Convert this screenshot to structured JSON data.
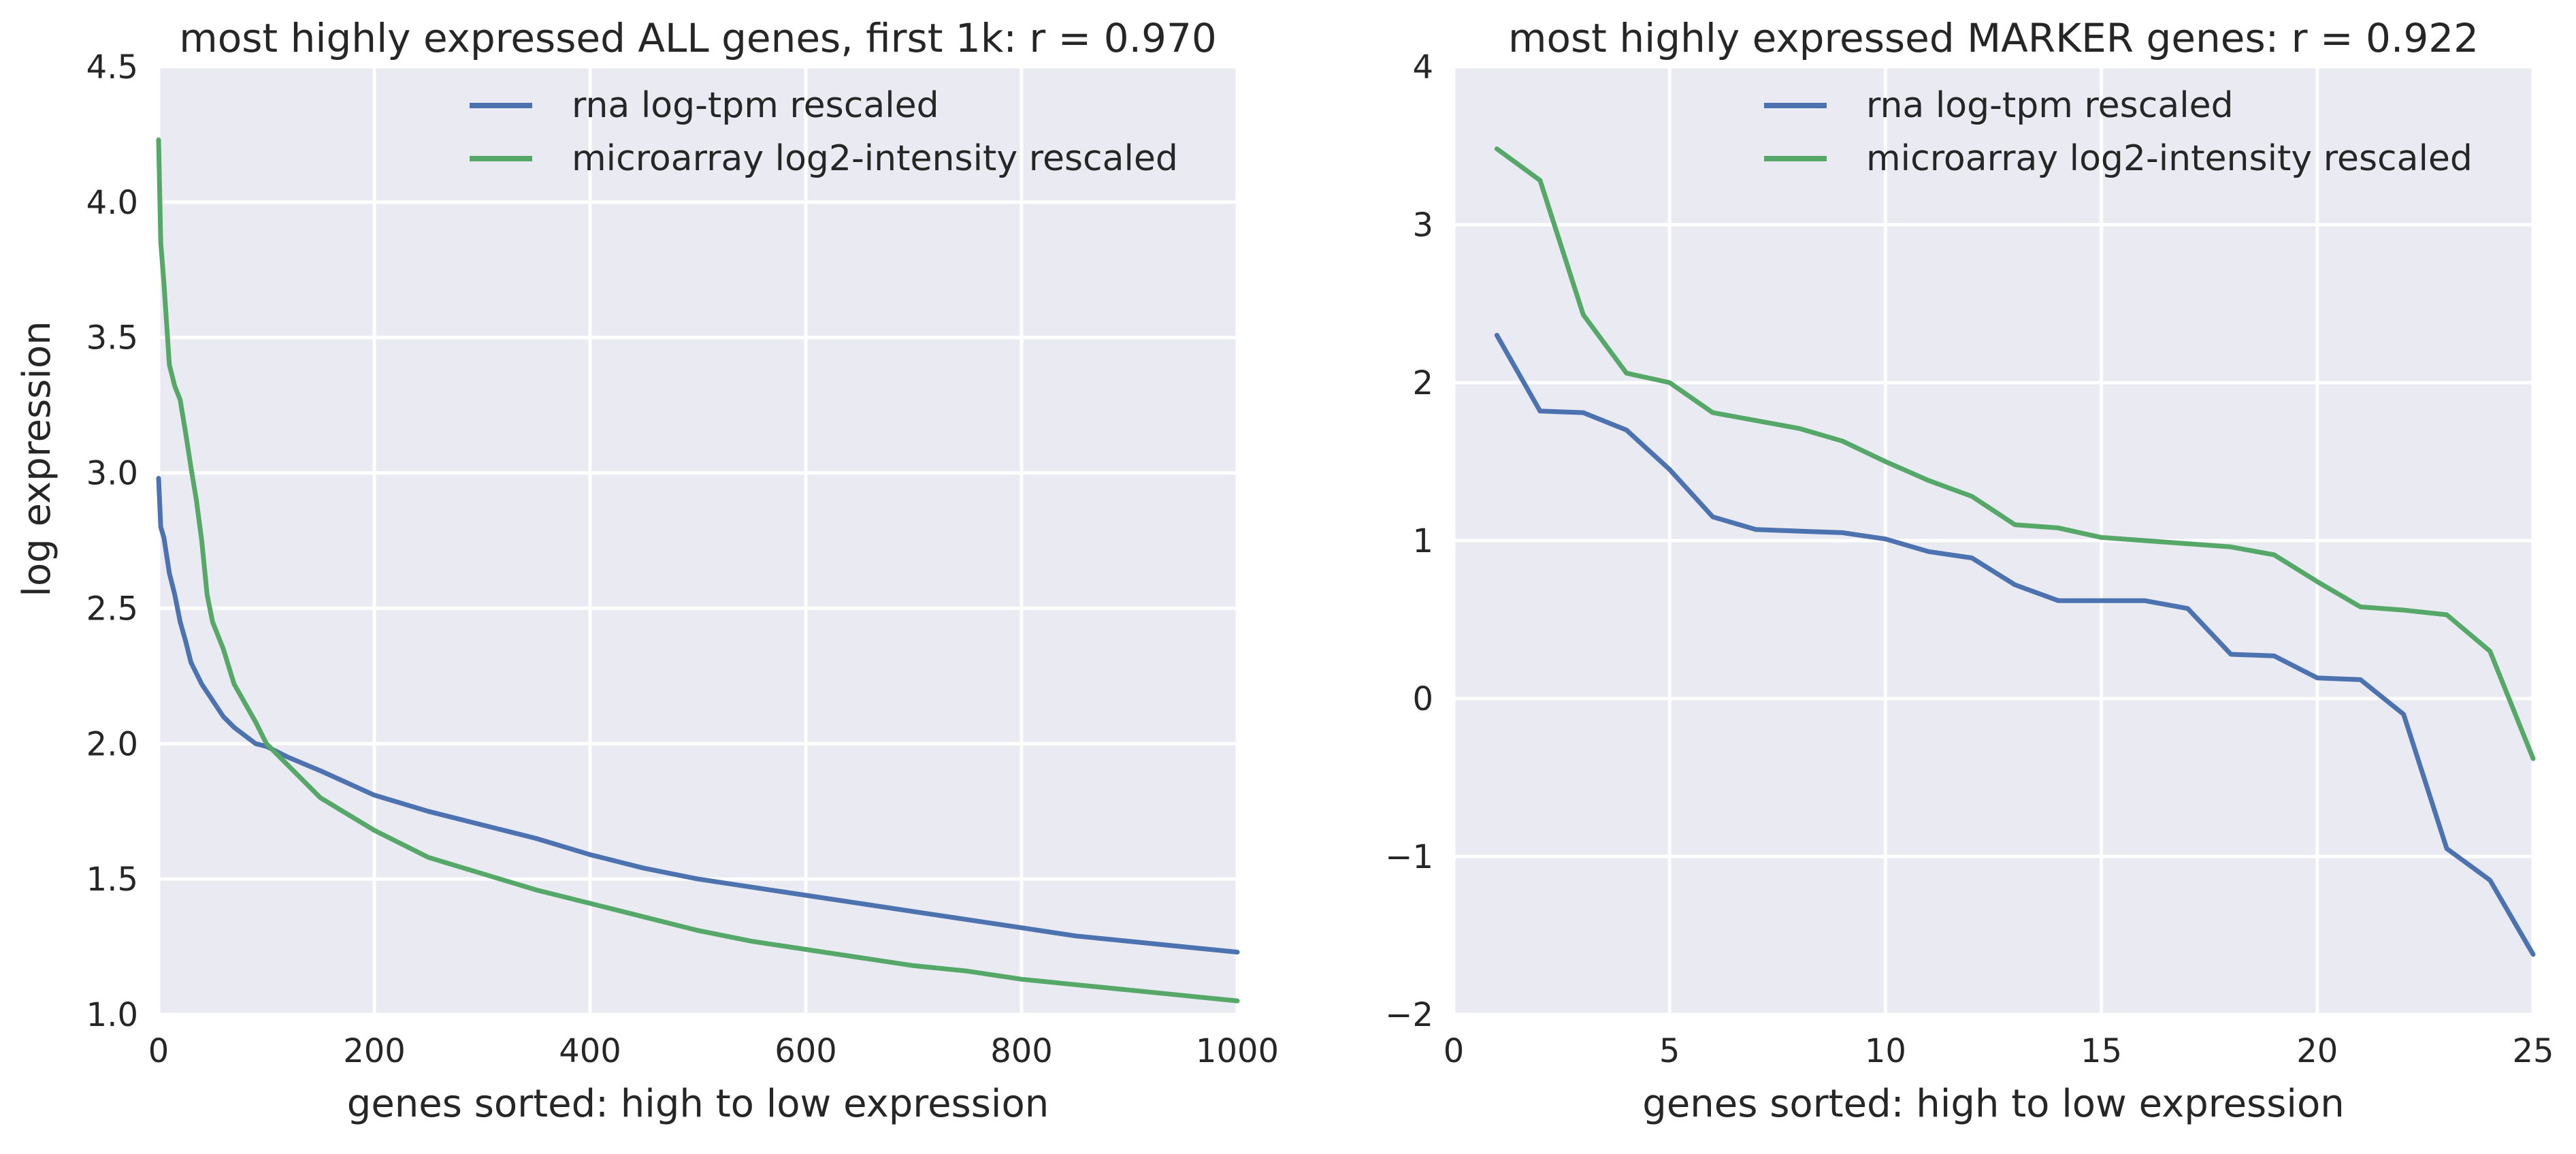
{
  "chart_data": [
    {
      "type": "line",
      "title": "most highly expressed ALL genes, first 1k: r = 0.970",
      "xlabel": "genes sorted: high to low expression",
      "ylabel": "log expression",
      "xlim": [
        0,
        1000
      ],
      "ylim": [
        1.0,
        4.5
      ],
      "xticks": [
        0,
        200,
        400,
        600,
        800,
        1000
      ],
      "xtick_labels": [
        "0",
        "200",
        "400",
        "600",
        "800",
        "1000"
      ],
      "yticks": [
        1.0,
        1.5,
        2.0,
        2.5,
        3.0,
        3.5,
        4.0,
        4.5
      ],
      "ytick_labels": [
        "1.0",
        "1.5",
        "2.0",
        "2.5",
        "3.0",
        "3.5",
        "4.0",
        "4.5"
      ],
      "grid": true,
      "legend_position": "top-center",
      "series": [
        {
          "name": "rna log-tpm rescaled",
          "color": "#4c72b0",
          "x": [
            0,
            2,
            5,
            10,
            15,
            20,
            25,
            30,
            40,
            50,
            60,
            70,
            80,
            90,
            100,
            120,
            150,
            200,
            250,
            300,
            350,
            400,
            450,
            500,
            550,
            600,
            650,
            700,
            750,
            800,
            850,
            900,
            950,
            1000
          ],
          "y": [
            2.98,
            2.8,
            2.76,
            2.63,
            2.55,
            2.45,
            2.38,
            2.3,
            2.22,
            2.16,
            2.1,
            2.06,
            2.03,
            2.0,
            1.99,
            1.95,
            1.9,
            1.81,
            1.75,
            1.7,
            1.65,
            1.59,
            1.54,
            1.5,
            1.47,
            1.44,
            1.41,
            1.38,
            1.35,
            1.32,
            1.29,
            1.27,
            1.25,
            1.23
          ]
        },
        {
          "name": "microarray log2-intensity rescaled",
          "color": "#55a868",
          "x": [
            0,
            2,
            5,
            10,
            15,
            20,
            25,
            30,
            35,
            40,
            45,
            50,
            60,
            70,
            80,
            90,
            100,
            120,
            150,
            200,
            250,
            300,
            350,
            400,
            450,
            500,
            550,
            600,
            650,
            700,
            750,
            800,
            850,
            900,
            950,
            1000
          ],
          "y": [
            4.23,
            3.85,
            3.7,
            3.4,
            3.32,
            3.27,
            3.15,
            3.02,
            2.9,
            2.75,
            2.55,
            2.45,
            2.35,
            2.22,
            2.15,
            2.08,
            2.0,
            1.92,
            1.8,
            1.68,
            1.58,
            1.52,
            1.46,
            1.41,
            1.36,
            1.31,
            1.27,
            1.24,
            1.21,
            1.18,
            1.16,
            1.13,
            1.11,
            1.09,
            1.07,
            1.05
          ]
        }
      ]
    },
    {
      "type": "line",
      "title": "most highly expressed MARKER genes: r = 0.922",
      "xlabel": "genes sorted: high to low expression",
      "ylabel": "",
      "xlim": [
        0,
        25
      ],
      "ylim": [
        -2,
        4
      ],
      "xticks": [
        0,
        5,
        10,
        15,
        20,
        25
      ],
      "xtick_labels": [
        "0",
        "5",
        "10",
        "15",
        "20",
        "25"
      ],
      "yticks": [
        -2,
        -1,
        0,
        1,
        2,
        3,
        4
      ],
      "ytick_labels": [
        "−2",
        "−1",
        "0",
        "1",
        "2",
        "3",
        "4"
      ],
      "grid": true,
      "legend_position": "top-center",
      "series": [
        {
          "name": "rna log-tpm rescaled",
          "color": "#4c72b0",
          "x": [
            1,
            2,
            3,
            4,
            5,
            6,
            7,
            8,
            9,
            10,
            11,
            12,
            13,
            14,
            15,
            16,
            17,
            18,
            19,
            20,
            21,
            22,
            23,
            24,
            25
          ],
          "y": [
            2.3,
            1.82,
            1.81,
            1.7,
            1.45,
            1.15,
            1.07,
            1.06,
            1.05,
            1.01,
            0.93,
            0.89,
            0.72,
            0.62,
            0.62,
            0.62,
            0.57,
            0.28,
            0.27,
            0.13,
            0.12,
            -0.1,
            -0.95,
            -1.15,
            -1.62
          ]
        },
        {
          "name": "microarray log2-intensity rescaled",
          "color": "#55a868",
          "x": [
            1,
            2,
            3,
            4,
            5,
            6,
            7,
            8,
            9,
            10,
            11,
            12,
            13,
            14,
            15,
            16,
            17,
            18,
            19,
            20,
            21,
            22,
            23,
            24,
            25
          ],
          "y": [
            3.48,
            3.28,
            2.43,
            2.06,
            2.0,
            1.81,
            1.76,
            1.71,
            1.63,
            1.5,
            1.38,
            1.28,
            1.1,
            1.08,
            1.02,
            1.0,
            0.98,
            0.96,
            0.91,
            0.74,
            0.58,
            0.56,
            0.53,
            0.3,
            -0.38
          ]
        }
      ]
    }
  ]
}
